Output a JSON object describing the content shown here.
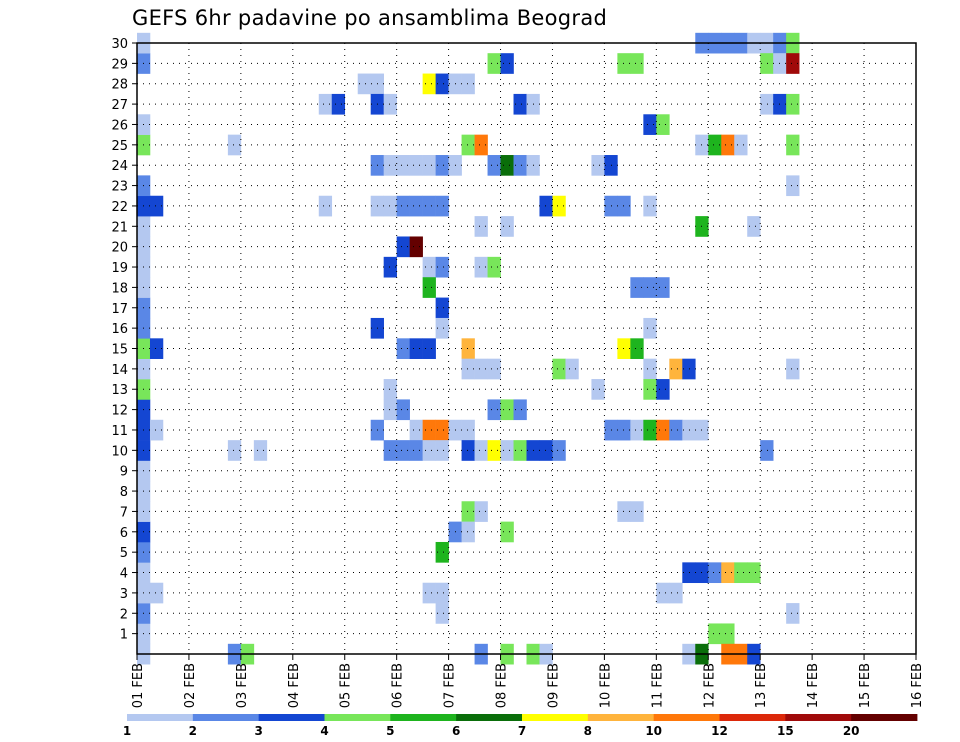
{
  "chart_data": {
    "type": "heatmap",
    "title": "GEFS 6hr padavine po ansamblima Beograd",
    "xlabel": "",
    "ylabel": "",
    "x_tick_labels": [
      "01 FEB",
      "02 FEB",
      "03 FEB",
      "04 FEB",
      "05 FEB",
      "06 FEB",
      "07 FEB",
      "08 FEB",
      "09 FEB",
      "10 FEB",
      "11 FEB",
      "12 FEB",
      "13 FEB",
      "14 FEB",
      "15 FEB",
      "16 FEB"
    ],
    "y_tick_labels": [
      "1",
      "2",
      "3",
      "4",
      "5",
      "6",
      "7",
      "8",
      "9",
      "10",
      "11",
      "12",
      "13",
      "14",
      "15",
      "16",
      "17",
      "18",
      "19",
      "20",
      "21",
      "22",
      "23",
      "24",
      "25",
      "26",
      "27",
      "28",
      "29",
      "30"
    ],
    "x_range_days": [
      0,
      15
    ],
    "time_step_hours": 6,
    "members_range": [
      0,
      30
    ],
    "grid": "dotted",
    "colorbar": {
      "placement": "bottom",
      "bounds": [
        "1",
        "2",
        "3",
        "4",
        "5",
        "6",
        "7",
        "8",
        "10",
        "12",
        "15",
        "20"
      ],
      "colors": [
        "#b4c8f0",
        "#5a87e6",
        "#1446d2",
        "#78e65a",
        "#1eb41e",
        "#0a6e0a",
        "#ffff00",
        "#ffb43c",
        "#ff780a",
        "#dc280a",
        "#a00a0a",
        "#640000"
      ]
    },
    "cells": [
      {
        "t": 0,
        "m": 0,
        "v": 1
      },
      {
        "t": 0,
        "m": 1,
        "v": 1
      },
      {
        "t": 0,
        "m": 2,
        "v": 2
      },
      {
        "t": 0,
        "m": 3,
        "v": 1
      },
      {
        "t": 0,
        "m": 4,
        "v": 1
      },
      {
        "t": 0,
        "m": 5,
        "v": 2
      },
      {
        "t": 0,
        "m": 6,
        "v": 3
      },
      {
        "t": 0,
        "m": 7,
        "v": 1
      },
      {
        "t": 0,
        "m": 8,
        "v": 1
      },
      {
        "t": 0,
        "m": 9,
        "v": 1
      },
      {
        "t": 0,
        "m": 10,
        "v": 3
      },
      {
        "t": 0,
        "m": 11,
        "v": 3
      },
      {
        "t": 0,
        "m": 12,
        "v": 3
      },
      {
        "t": 0,
        "m": 13,
        "v": 4
      },
      {
        "t": 0,
        "m": 14,
        "v": 1
      },
      {
        "t": 0,
        "m": 15,
        "v": 4
      },
      {
        "t": 0,
        "m": 16,
        "v": 2
      },
      {
        "t": 0,
        "m": 17,
        "v": 2
      },
      {
        "t": 0,
        "m": 18,
        "v": 1
      },
      {
        "t": 0,
        "m": 19,
        "v": 1
      },
      {
        "t": 0,
        "m": 20,
        "v": 1
      },
      {
        "t": 0,
        "m": 21,
        "v": 1
      },
      {
        "t": 0,
        "m": 22,
        "v": 3
      },
      {
        "t": 0,
        "m": 23,
        "v": 2
      },
      {
        "t": 0,
        "m": 25,
        "v": 4
      },
      {
        "t": 0,
        "m": 26,
        "v": 1
      },
      {
        "t": 0,
        "m": 29,
        "v": 2
      },
      {
        "t": 0,
        "m": 30,
        "v": 1
      },
      {
        "t": 1,
        "m": 3,
        "v": 1
      },
      {
        "t": 1,
        "m": 11,
        "v": 1
      },
      {
        "t": 1,
        "m": 15,
        "v": 3
      },
      {
        "t": 1,
        "m": 22,
        "v": 3
      },
      {
        "t": 7,
        "m": 0,
        "v": 2
      },
      {
        "t": 7,
        "m": 10,
        "v": 1
      },
      {
        "t": 7,
        "m": 25,
        "v": 1
      },
      {
        "t": 8,
        "m": 0,
        "v": 4
      },
      {
        "t": 9,
        "m": 10,
        "v": 1
      },
      {
        "t": 14,
        "m": 22,
        "v": 1
      },
      {
        "t": 14,
        "m": 27,
        "v": 1
      },
      {
        "t": 15,
        "m": 27,
        "v": 3
      },
      {
        "t": 17,
        "m": 28,
        "v": 1
      },
      {
        "t": 18,
        "m": 28,
        "v": 1
      },
      {
        "t": 18,
        "m": 27,
        "v": 3
      },
      {
        "t": 18,
        "m": 16,
        "v": 3
      },
      {
        "t": 18,
        "m": 11,
        "v": 2
      },
      {
        "t": 18,
        "m": 24,
        "v": 2
      },
      {
        "t": 18,
        "m": 22,
        "v": 1
      },
      {
        "t": 19,
        "m": 27,
        "v": 1
      },
      {
        "t": 19,
        "m": 22,
        "v": 1
      },
      {
        "t": 19,
        "m": 24,
        "v": 1
      },
      {
        "t": 19,
        "m": 19,
        "v": 3
      },
      {
        "t": 19,
        "m": 12,
        "v": 1
      },
      {
        "t": 19,
        "m": 10,
        "v": 2
      },
      {
        "t": 19,
        "m": 13,
        "v": 1
      },
      {
        "t": 20,
        "m": 20,
        "v": 3
      },
      {
        "t": 20,
        "m": 15,
        "v": 2
      },
      {
        "t": 20,
        "m": 12,
        "v": 2
      },
      {
        "t": 20,
        "m": 10,
        "v": 2
      },
      {
        "t": 20,
        "m": 24,
        "v": 1
      },
      {
        "t": 20,
        "m": 22,
        "v": 2
      },
      {
        "t": 21,
        "m": 20,
        "v": 20
      },
      {
        "t": 21,
        "m": 15,
        "v": 3
      },
      {
        "t": 21,
        "m": 24,
        "v": 1
      },
      {
        "t": 21,
        "m": 22,
        "v": 2
      },
      {
        "t": 21,
        "m": 11,
        "v": 1
      },
      {
        "t": 21,
        "m": 10,
        "v": 2
      },
      {
        "t": 22,
        "m": 19,
        "v": 1
      },
      {
        "t": 22,
        "m": 18,
        "v": 5
      },
      {
        "t": 22,
        "m": 15,
        "v": 3
      },
      {
        "t": 22,
        "m": 28,
        "v": 7
      },
      {
        "t": 22,
        "m": 24,
        "v": 1
      },
      {
        "t": 22,
        "m": 22,
        "v": 2
      },
      {
        "t": 22,
        "m": 11,
        "v": 10
      },
      {
        "t": 22,
        "m": 10,
        "v": 1
      },
      {
        "t": 22,
        "m": 3,
        "v": 1
      },
      {
        "t": 23,
        "m": 28,
        "v": 3
      },
      {
        "t": 23,
        "m": 19,
        "v": 2
      },
      {
        "t": 23,
        "m": 17,
        "v": 3
      },
      {
        "t": 23,
        "m": 16,
        "v": 1
      },
      {
        "t": 23,
        "m": 11,
        "v": 10
      },
      {
        "t": 23,
        "m": 10,
        "v": 1
      },
      {
        "t": 23,
        "m": 5,
        "v": 5
      },
      {
        "t": 23,
        "m": 3,
        "v": 1
      },
      {
        "t": 23,
        "m": 24,
        "v": 2
      },
      {
        "t": 23,
        "m": 22,
        "v": 2
      },
      {
        "t": 23,
        "m": 2,
        "v": 1
      },
      {
        "t": 24,
        "m": 28,
        "v": 1
      },
      {
        "t": 24,
        "m": 24,
        "v": 1
      },
      {
        "t": 24,
        "m": 6,
        "v": 2
      },
      {
        "t": 24,
        "m": 11,
        "v": 1
      },
      {
        "t": 25,
        "m": 28,
        "v": 1
      },
      {
        "t": 25,
        "m": 25,
        "v": 4
      },
      {
        "t": 25,
        "m": 15,
        "v": 8
      },
      {
        "t": 25,
        "m": 14,
        "v": 1
      },
      {
        "t": 25,
        "m": 11,
        "v": 1
      },
      {
        "t": 25,
        "m": 10,
        "v": 3
      },
      {
        "t": 25,
        "m": 7,
        "v": 4
      },
      {
        "t": 25,
        "m": 6,
        "v": 1
      },
      {
        "t": 26,
        "m": 25,
        "v": 10
      },
      {
        "t": 26,
        "m": 21,
        "v": 1
      },
      {
        "t": 26,
        "m": 19,
        "v": 1
      },
      {
        "t": 26,
        "m": 14,
        "v": 1
      },
      {
        "t": 26,
        "m": 10,
        "v": 1
      },
      {
        "t": 26,
        "m": 7,
        "v": 1
      },
      {
        "t": 26,
        "m": 0,
        "v": 2
      },
      {
        "t": 27,
        "m": 29,
        "v": 4
      },
      {
        "t": 27,
        "m": 24,
        "v": 2
      },
      {
        "t": 27,
        "m": 19,
        "v": 4
      },
      {
        "t": 27,
        "m": 14,
        "v": 1
      },
      {
        "t": 27,
        "m": 12,
        "v": 2
      },
      {
        "t": 27,
        "m": 10,
        "v": 7
      },
      {
        "t": 28,
        "m": 29,
        "v": 3
      },
      {
        "t": 28,
        "m": 24,
        "v": 6
      },
      {
        "t": 28,
        "m": 21,
        "v": 1
      },
      {
        "t": 28,
        "m": 12,
        "v": 4
      },
      {
        "t": 28,
        "m": 10,
        "v": 1
      },
      {
        "t": 28,
        "m": 6,
        "v": 4
      },
      {
        "t": 28,
        "m": 0,
        "v": 4
      },
      {
        "t": 29,
        "m": 24,
        "v": 2
      },
      {
        "t": 29,
        "m": 12,
        "v": 2
      },
      {
        "t": 29,
        "m": 10,
        "v": 4
      },
      {
        "t": 29,
        "m": 27,
        "v": 3
      },
      {
        "t": 30,
        "m": 24,
        "v": 1
      },
      {
        "t": 30,
        "m": 10,
        "v": 3
      },
      {
        "t": 30,
        "m": 27,
        "v": 1
      },
      {
        "t": 30,
        "m": 0,
        "v": 4
      },
      {
        "t": 31,
        "m": 10,
        "v": 3
      },
      {
        "t": 31,
        "m": 22,
        "v": 3
      },
      {
        "t": 31,
        "m": 0,
        "v": 1
      },
      {
        "t": 32,
        "m": 22,
        "v": 7
      },
      {
        "t": 32,
        "m": 10,
        "v": 2
      },
      {
        "t": 32,
        "m": 14,
        "v": 4
      },
      {
        "t": 33,
        "m": 14,
        "v": 1
      },
      {
        "t": 35,
        "m": 24,
        "v": 1
      },
      {
        "t": 35,
        "m": 13,
        "v": 1
      },
      {
        "t": 36,
        "m": 24,
        "v": 3
      },
      {
        "t": 36,
        "m": 22,
        "v": 2
      },
      {
        "t": 36,
        "m": 11,
        "v": 2
      },
      {
        "t": 37,
        "m": 22,
        "v": 2
      },
      {
        "t": 37,
        "m": 29,
        "v": 4
      },
      {
        "t": 37,
        "m": 15,
        "v": 7
      },
      {
        "t": 37,
        "m": 11,
        "v": 2
      },
      {
        "t": 37,
        "m": 7,
        "v": 1
      },
      {
        "t": 38,
        "m": 29,
        "v": 4
      },
      {
        "t": 38,
        "m": 18,
        "v": 2
      },
      {
        "t": 38,
        "m": 15,
        "v": 5
      },
      {
        "t": 38,
        "m": 11,
        "v": 1
      },
      {
        "t": 38,
        "m": 7,
        "v": 1
      },
      {
        "t": 39,
        "m": 26,
        "v": 3
      },
      {
        "t": 39,
        "m": 22,
        "v": 1
      },
      {
        "t": 39,
        "m": 18,
        "v": 2
      },
      {
        "t": 39,
        "m": 16,
        "v": 1
      },
      {
        "t": 39,
        "m": 14,
        "v": 1
      },
      {
        "t": 39,
        "m": 13,
        "v": 4
      },
      {
        "t": 39,
        "m": 11,
        "v": 5
      },
      {
        "t": 40,
        "m": 26,
        "v": 4
      },
      {
        "t": 40,
        "m": 18,
        "v": 2
      },
      {
        "t": 40,
        "m": 13,
        "v": 3
      },
      {
        "t": 40,
        "m": 11,
        "v": 10
      },
      {
        "t": 40,
        "m": 3,
        "v": 1
      },
      {
        "t": 41,
        "m": 11,
        "v": 2
      },
      {
        "t": 41,
        "m": 14,
        "v": 8
      },
      {
        "t": 41,
        "m": 3,
        "v": 1
      },
      {
        "t": 42,
        "m": 14,
        "v": 3
      },
      {
        "t": 42,
        "m": 11,
        "v": 1
      },
      {
        "t": 42,
        "m": 4,
        "v": 3
      },
      {
        "t": 42,
        "m": 0,
        "v": 1
      },
      {
        "t": 43,
        "m": 30,
        "v": 2
      },
      {
        "t": 43,
        "m": 25,
        "v": 1
      },
      {
        "t": 43,
        "m": 21,
        "v": 5
      },
      {
        "t": 43,
        "m": 11,
        "v": 1
      },
      {
        "t": 43,
        "m": 4,
        "v": 3
      },
      {
        "t": 43,
        "m": 0,
        "v": 6
      },
      {
        "t": 44,
        "m": 30,
        "v": 2
      },
      {
        "t": 44,
        "m": 25,
        "v": 5
      },
      {
        "t": 44,
        "m": 4,
        "v": 2
      },
      {
        "t": 44,
        "m": 1,
        "v": 4
      },
      {
        "t": 45,
        "m": 30,
        "v": 2
      },
      {
        "t": 45,
        "m": 25,
        "v": 10
      },
      {
        "t": 45,
        "m": 4,
        "v": 8
      },
      {
        "t": 45,
        "m": 1,
        "v": 4
      },
      {
        "t": 45,
        "m": 0,
        "v": 10
      },
      {
        "t": 46,
        "m": 30,
        "v": 2
      },
      {
        "t": 46,
        "m": 25,
        "v": 1
      },
      {
        "t": 46,
        "m": 4,
        "v": 4
      },
      {
        "t": 46,
        "m": 0,
        "v": 10
      },
      {
        "t": 47,
        "m": 30,
        "v": 1
      },
      {
        "t": 47,
        "m": 21,
        "v": 1
      },
      {
        "t": 47,
        "m": 4,
        "v": 4
      },
      {
        "t": 47,
        "m": 0,
        "v": 3
      },
      {
        "t": 48,
        "m": 30,
        "v": 1
      },
      {
        "t": 48,
        "m": 29,
        "v": 4
      },
      {
        "t": 48,
        "m": 27,
        "v": 1
      },
      {
        "t": 48,
        "m": 10,
        "v": 2
      },
      {
        "t": 49,
        "m": 30,
        "v": 2
      },
      {
        "t": 49,
        "m": 29,
        "v": 1
      },
      {
        "t": 49,
        "m": 27,
        "v": 3
      },
      {
        "t": 50,
        "m": 30,
        "v": 4
      },
      {
        "t": 50,
        "m": 29,
        "v": 15
      },
      {
        "t": 50,
        "m": 27,
        "v": 4
      },
      {
        "t": 50,
        "m": 25,
        "v": 4
      },
      {
        "t": 50,
        "m": 23,
        "v": 1
      },
      {
        "t": 50,
        "m": 14,
        "v": 1
      },
      {
        "t": 50,
        "m": 2,
        "v": 1
      }
    ]
  }
}
